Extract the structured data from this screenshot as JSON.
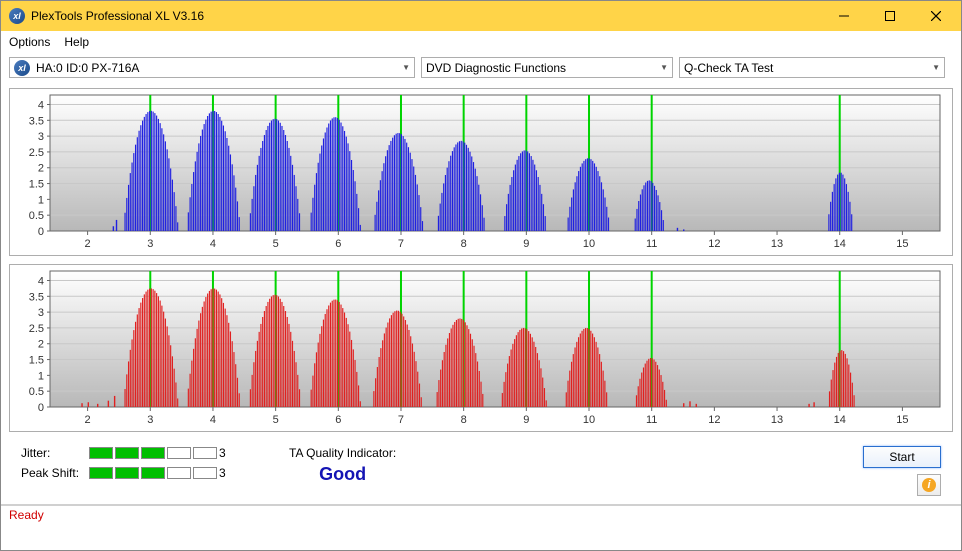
{
  "window": {
    "title": "PlexTools Professional XL V3.16"
  },
  "menu": {
    "options": "Options",
    "help": "Help"
  },
  "toolbar": {
    "drive": "HA:0 ID:0  PX-716A",
    "func": "DVD Diagnostic Functions",
    "test": "Q-Check TA Test"
  },
  "chart": {
    "y_ticks": [
      0,
      0.5,
      1,
      1.5,
      2,
      2.5,
      3,
      3.5,
      4
    ],
    "x_ticks": [
      2,
      3,
      4,
      5,
      6,
      7,
      8,
      9,
      10,
      11,
      12,
      13,
      14,
      15
    ],
    "x_min": 1.4,
    "x_max": 15.6,
    "y_max": 4.3,
    "plot_bg_top": "#ffffff",
    "plot_bg_bot": "#b8b8b8",
    "grid_color": "#c8c8c8",
    "axis_color": "#666666",
    "green_line_color": "#00d400",
    "green_lines": [
      3,
      4,
      5,
      6,
      7,
      8,
      9,
      10,
      11,
      14
    ],
    "top": {
      "color": "#2020e0",
      "clusters": [
        {
          "c": 3.0,
          "h": 3.8,
          "w": 0.88
        },
        {
          "c": 4.0,
          "h": 3.8,
          "w": 0.86
        },
        {
          "c": 4.98,
          "h": 3.55,
          "w": 0.84
        },
        {
          "c": 5.94,
          "h": 3.6,
          "w": 0.82
        },
        {
          "c": 6.95,
          "h": 3.1,
          "w": 0.8
        },
        {
          "c": 7.95,
          "h": 2.85,
          "w": 0.78
        },
        {
          "c": 8.97,
          "h": 2.55,
          "w": 0.7
        },
        {
          "c": 9.98,
          "h": 2.3,
          "w": 0.7
        },
        {
          "c": 10.95,
          "h": 1.6,
          "w": 0.5
        },
        {
          "c": 14.0,
          "h": 1.85,
          "w": 0.42
        }
      ],
      "scatter": [
        {
          "x": 2.4,
          "h": 0.15
        },
        {
          "x": 2.45,
          "h": 0.35
        },
        {
          "x": 11.4,
          "h": 0.1
        },
        {
          "x": 11.5,
          "h": 0.05
        }
      ]
    },
    "bottom": {
      "color": "#e02020",
      "clusters": [
        {
          "c": 3.0,
          "h": 3.75,
          "w": 0.88
        },
        {
          "c": 4.0,
          "h": 3.75,
          "w": 0.86
        },
        {
          "c": 4.98,
          "h": 3.55,
          "w": 0.84
        },
        {
          "c": 5.94,
          "h": 3.4,
          "w": 0.82
        },
        {
          "c": 6.93,
          "h": 3.05,
          "w": 0.8
        },
        {
          "c": 7.93,
          "h": 2.8,
          "w": 0.78
        },
        {
          "c": 8.95,
          "h": 2.5,
          "w": 0.74
        },
        {
          "c": 9.95,
          "h": 2.5,
          "w": 0.7
        },
        {
          "c": 10.98,
          "h": 1.55,
          "w": 0.52
        },
        {
          "c": 14.02,
          "h": 1.8,
          "w": 0.44
        }
      ],
      "scatter": [
        {
          "x": 1.9,
          "h": 0.12
        },
        {
          "x": 2.0,
          "h": 0.15
        },
        {
          "x": 2.15,
          "h": 0.1
        },
        {
          "x": 2.32,
          "h": 0.2
        },
        {
          "x": 2.42,
          "h": 0.35
        },
        {
          "x": 11.5,
          "h": 0.12
        },
        {
          "x": 11.6,
          "h": 0.18
        },
        {
          "x": 11.7,
          "h": 0.1
        },
        {
          "x": 13.5,
          "h": 0.1
        },
        {
          "x": 13.58,
          "h": 0.15
        }
      ]
    }
  },
  "metrics": {
    "jitter_label": "Jitter:",
    "jitter_segments": 5,
    "jitter_on": 3,
    "jitter_value": "3",
    "peak_label": "Peak Shift:",
    "peak_segments": 5,
    "peak_on": 3,
    "peak_value": "3"
  },
  "quality": {
    "label": "TA Quality Indicator:",
    "value": "Good",
    "color": "#1414b4"
  },
  "buttons": {
    "start": "Start"
  },
  "status": {
    "text": "Ready",
    "color": "#d00000"
  }
}
